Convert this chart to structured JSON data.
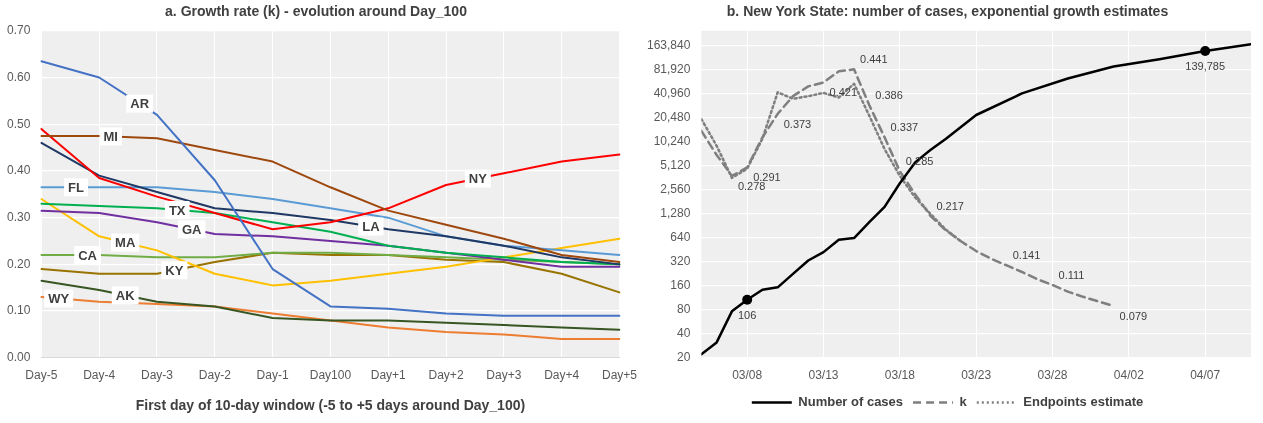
{
  "chart_data": [
    {
      "type": "line",
      "title": "a. Growth rate (k) - evolution around Day_100",
      "xlabel": "First day of 10-day window (-5 to +5 days around Day_100)",
      "categories": [
        "Day-5",
        "Day-4",
        "Day-3",
        "Day-2",
        "Day-1",
        "Day100",
        "Day+1",
        "Day+2",
        "Day+3",
        "Day+4",
        "Day+5"
      ],
      "series": [
        {
          "name": "AR",
          "color": "#4472c4",
          "values": [
            0.635,
            0.6,
            0.52,
            0.38,
            0.19,
            0.11,
            0.105,
            0.095,
            0.09,
            0.09,
            0.09
          ]
        },
        {
          "name": "MI",
          "color": "#9e480e",
          "values": [
            0.475,
            0.475,
            0.47,
            0.445,
            0.42,
            0.365,
            0.315,
            0.285,
            0.255,
            0.22,
            0.205
          ]
        },
        {
          "name": "NY",
          "color": "#ff0000",
          "values": [
            0.49,
            0.385,
            0.345,
            0.31,
            0.275,
            0.29,
            0.32,
            0.37,
            0.395,
            0.42,
            0.435
          ]
        },
        {
          "name": "LA",
          "color": "#1f3864",
          "values": [
            0.46,
            0.39,
            0.355,
            0.32,
            0.31,
            0.295,
            0.275,
            0.26,
            0.24,
            0.215,
            0.2
          ]
        },
        {
          "name": "FL",
          "color": "#5b9bd5",
          "values": [
            0.365,
            0.365,
            0.365,
            0.355,
            0.34,
            0.32,
            0.3,
            0.26,
            0.24,
            0.23,
            0.22
          ]
        },
        {
          "name": "TX",
          "color": "#00b050",
          "values": [
            0.33,
            0.325,
            0.32,
            0.31,
            0.29,
            0.27,
            0.24,
            0.225,
            0.215,
            0.205,
            0.2
          ]
        },
        {
          "name": "GA",
          "color": "#7030a0",
          "values": [
            0.315,
            0.31,
            0.29,
            0.265,
            0.26,
            0.25,
            0.24,
            0.225,
            0.21,
            0.195,
            0.195
          ]
        },
        {
          "name": "MA",
          "color": "#ffc000",
          "values": [
            0.34,
            0.26,
            0.23,
            0.18,
            0.155,
            0.165,
            0.18,
            0.195,
            0.215,
            0.235,
            0.255
          ]
        },
        {
          "name": "CA",
          "color": "#70ad47",
          "values": [
            0.22,
            0.22,
            0.215,
            0.215,
            0.225,
            0.225,
            0.22,
            0.215,
            0.21,
            0.205,
            0.2
          ]
        },
        {
          "name": "KY",
          "color": "#997300",
          "values": [
            0.19,
            0.18,
            0.18,
            0.205,
            0.225,
            0.22,
            0.22,
            0.21,
            0.205,
            0.18,
            0.14
          ]
        },
        {
          "name": "AK",
          "color": "#375623",
          "values": [
            0.165,
            0.145,
            0.12,
            0.11,
            0.085,
            0.08,
            0.08,
            0.075,
            0.07,
            0.065,
            0.06
          ]
        },
        {
          "name": "WY",
          "color": "#ed7d31",
          "values": [
            0.13,
            0.12,
            0.115,
            0.11,
            0.095,
            0.08,
            0.065,
            0.055,
            0.05,
            0.04,
            0.04
          ]
        }
      ],
      "ylim": [
        0,
        0.7
      ],
      "yticks": [
        {
          "value": 0,
          "label": "0.00"
        },
        {
          "value": 0.1,
          "label": "0.10"
        },
        {
          "value": 0.2,
          "label": "0.20"
        },
        {
          "value": 0.3,
          "label": "0.30"
        },
        {
          "value": 0.4,
          "label": "0.40"
        },
        {
          "value": 0.5,
          "label": "0.50"
        },
        {
          "value": 0.6,
          "label": "0.60"
        },
        {
          "value": 0.7,
          "label": "0.70"
        }
      ],
      "grid": true,
      "legend": false,
      "line_style": "solid"
    },
    {
      "type": "line",
      "title": "b. New York State: number of cases, exponential growth estimates",
      "series": [
        {
          "name": "Number of cases",
          "color": "#000000",
          "line_style": "solid",
          "x": [
            "--03-05",
            "--03-06",
            "--03-07",
            "--03-08",
            "--03-09",
            "--03-10",
            "--03-11",
            "--03-12",
            "--03-13",
            "--03-14",
            "--03-15",
            "--03-16",
            "--03-17",
            "--03-18",
            "--03-19",
            "--03-20",
            "--03-21",
            "--03-23",
            "--03-26",
            "--03-29",
            "--04-01",
            "--04-04",
            "--04-07",
            "--04-10"
          ],
          "values": [
            22,
            31,
            76,
            106,
            142,
            152,
            224,
            330,
            420,
            600,
            630,
            1000,
            1550,
            3070,
            5600,
            8000,
            11000,
            22000,
            41000,
            63000,
            89000,
            110000,
            139785,
            170000
          ],
          "value_labels": [
            null,
            null,
            null,
            "106",
            null,
            null,
            null,
            null,
            null,
            null,
            null,
            null,
            null,
            null,
            null,
            null,
            null,
            null,
            null,
            null,
            null,
            null,
            "139,785",
            null
          ]
        },
        {
          "name": "k",
          "color": "#7f7f7f",
          "line_style": "dashed",
          "axis": "y2",
          "x": [
            "--03-05",
            "--03-06",
            "--03-07",
            "--03-08",
            "--03-09",
            "--03-10",
            "--03-11",
            "--03-12",
            "--03-13",
            "--03-14",
            "--03-15",
            "--03-16",
            "--03-17",
            "--03-18",
            "--03-19",
            "--03-20",
            "--03-21",
            "--03-22",
            "--03-23",
            "--03-24",
            "--03-25",
            "--03-26",
            "--03-27",
            "--03-28",
            "--03-29",
            "--03-30",
            "--03-31",
            "--04-01"
          ],
          "values": [
            0.347,
            0.31,
            0.278,
            0.291,
            0.337,
            0.373,
            0.4,
            0.415,
            0.421,
            0.438,
            0.441,
            0.386,
            0.337,
            0.285,
            0.25,
            0.217,
            0.195,
            0.178,
            0.163,
            0.151,
            0.141,
            0.131,
            0.12,
            0.111,
            0.101,
            0.093,
            0.086,
            0.079
          ],
          "value_labels": [
            null,
            null,
            "0.278",
            "0.291",
            null,
            "0.373",
            null,
            null,
            "0.421",
            null,
            "0.441",
            "0.386",
            "0.337",
            "0.285",
            null,
            "0.217",
            null,
            null,
            null,
            null,
            "0.141",
            null,
            null,
            "0.111",
            null,
            null,
            null,
            "0.079"
          ]
        },
        {
          "name": "Endpoints estimate",
          "color": "#7f7f7f",
          "line_style": "dotted",
          "axis": "y2",
          "x": [
            "--03-05",
            "--03-06",
            "--03-07",
            "--03-08",
            "--03-09",
            "--03-10",
            "--03-11",
            "--03-12",
            "--03-13",
            "--03-14",
            "--03-15",
            "--03-16",
            "--03-17",
            "--03-18",
            "--03-19",
            "--03-20",
            "--03-21",
            "--03-22"
          ],
          "values": [
            0.365,
            0.324,
            0.275,
            0.289,
            0.335,
            0.406,
            0.396,
            0.4,
            0.405,
            0.398,
            0.419,
            0.37,
            0.319,
            0.278,
            0.245,
            0.22,
            0.196,
            0.178
          ]
        }
      ],
      "xlim": [
        "--03-05",
        "--04-10"
      ],
      "xticks": [
        {
          "value": "--03-08",
          "label": "03/08"
        },
        {
          "value": "--03-13",
          "label": "03/13"
        },
        {
          "value": "--03-18",
          "label": "03/18"
        },
        {
          "value": "--03-23",
          "label": "03/23"
        },
        {
          "value": "--03-28",
          "label": "03/28"
        },
        {
          "value": "--04-02",
          "label": "04/02"
        },
        {
          "value": "--04-07",
          "label": "04/07"
        }
      ],
      "log": "y",
      "ylim": [
        20,
        250000
      ],
      "yticks": [
        20,
        40,
        80,
        160,
        320,
        640,
        {
          "value": 1280,
          "label": "1,280"
        },
        {
          "value": 2560,
          "label": "2,560"
        },
        {
          "value": 5120,
          "label": "5,120"
        },
        {
          "value": 10240,
          "label": "10,240"
        },
        {
          "value": 20480,
          "label": "20,480"
        },
        {
          "value": 40960,
          "label": "40,960"
        },
        {
          "value": 81920,
          "label": "81,920"
        },
        {
          "value": 163840,
          "label": "163,840"
        }
      ],
      "y2lim": [
        0,
        0.5
      ],
      "tick_labels": "xy",
      "grid": true,
      "legend": "bottom"
    }
  ]
}
